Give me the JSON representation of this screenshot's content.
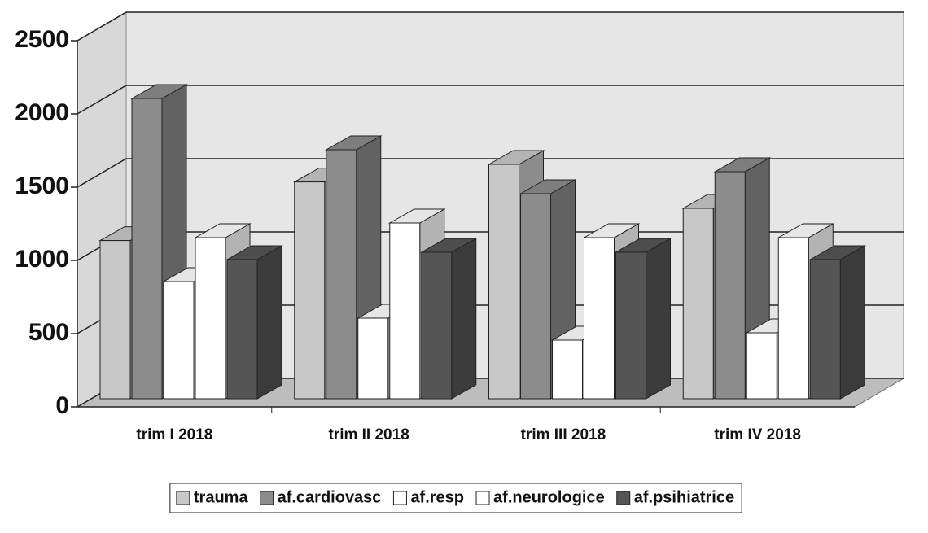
{
  "chart_data": {
    "type": "bar3d",
    "categories": [
      "trim I 2018",
      "trim II 2018",
      "trim III 2018",
      "trim IV 2018"
    ],
    "series": [
      {
        "name": "trauma",
        "color": "#c8c8c8",
        "values": [
          1080,
          1480,
          1600,
          1300
        ]
      },
      {
        "name": "af.cardiovasc",
        "color": "#8c8c8c",
        "values": [
          2050,
          1700,
          1400,
          1550
        ]
      },
      {
        "name": "af.resp",
        "color": "#ffffff",
        "values": [
          800,
          550,
          400,
          450
        ]
      },
      {
        "name": "af.neurologice",
        "color": "#ffffff",
        "values": [
          1100,
          1200,
          1100,
          1100
        ]
      },
      {
        "name": "af.psihiatrice",
        "color": "#555555",
        "values": [
          950,
          1000,
          1000,
          950
        ]
      }
    ],
    "ylim": [
      0,
      2500
    ],
    "yticks": [
      0,
      500,
      1000,
      1500,
      2000,
      2500
    ],
    "grid": true,
    "legend": "bottom"
  }
}
